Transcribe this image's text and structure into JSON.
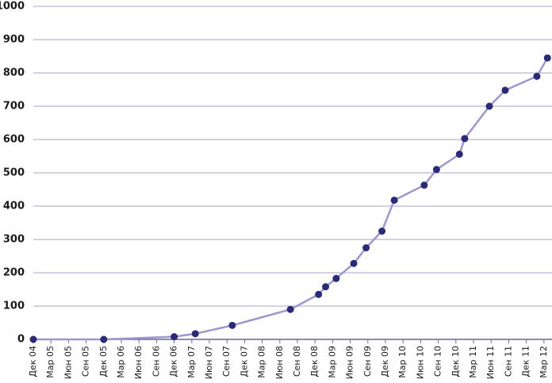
{
  "chart_data": {
    "type": "line",
    "x": [
      0,
      4,
      8,
      9.2,
      11.3,
      14.6,
      16.2,
      16.6,
      17.2,
      18.2,
      18.9,
      19.8,
      20.5,
      22.2,
      22.9,
      24.2,
      24.5,
      25.9,
      26.8,
      28.6,
      29.2
    ],
    "series": [
      {
        "color": "#9d97cb",
        "marker_color": "#2b2a77",
        "values": [
          0,
          0,
          8,
          17,
          42,
          90,
          135,
          158,
          183,
          228,
          275,
          325,
          418,
          463,
          510,
          556,
          603,
          700,
          748,
          790,
          845
        ]
      }
    ],
    "xlim": [
      0,
      29.3
    ],
    "xticks": [
      {
        "value": 0,
        "label": "Дек 04"
      },
      {
        "value": 1,
        "label": "Мар 05"
      },
      {
        "value": 2,
        "label": "Июн 05"
      },
      {
        "value": 3,
        "label": "Сен 05"
      },
      {
        "value": 4,
        "label": "Дек 05"
      },
      {
        "value": 5,
        "label": "Мар 06"
      },
      {
        "value": 6,
        "label": "Июн 06"
      },
      {
        "value": 7,
        "label": "Сен 06"
      },
      {
        "value": 8,
        "label": "Дек 06"
      },
      {
        "value": 9,
        "label": "Мар 07"
      },
      {
        "value": 10,
        "label": "Июн 07"
      },
      {
        "value": 11,
        "label": "Сен 07"
      },
      {
        "value": 12,
        "label": "Дек 07"
      },
      {
        "value": 13,
        "label": "Мар 08"
      },
      {
        "value": 14,
        "label": "Июн 08"
      },
      {
        "value": 15,
        "label": "Сен 08"
      },
      {
        "value": 16,
        "label": "Дек 08"
      },
      {
        "value": 17,
        "label": "Мар 09"
      },
      {
        "value": 18,
        "label": "Июн 09"
      },
      {
        "value": 19,
        "label": "Сен 09"
      },
      {
        "value": 20,
        "label": "Дек 09"
      },
      {
        "value": 21,
        "label": "Мар 10"
      },
      {
        "value": 22,
        "label": "Июн 10"
      },
      {
        "value": 23,
        "label": "Сен 10"
      },
      {
        "value": 24,
        "label": "Дек 10"
      },
      {
        "value": 25,
        "label": "Мар 11"
      },
      {
        "value": 26,
        "label": "Июн 11"
      },
      {
        "value": 27,
        "label": "Сен 11"
      },
      {
        "value": 28,
        "label": "Дек 11"
      },
      {
        "value": 29,
        "label": "Мар 12"
      }
    ],
    "ylim": [
      0,
      1000
    ],
    "yticks": [
      0,
      100,
      200,
      300,
      400,
      500,
      600,
      700,
      800,
      900,
      1000
    ],
    "grid": true
  }
}
